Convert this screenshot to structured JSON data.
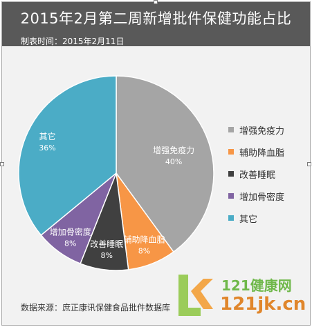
{
  "header": {
    "title": "2015年2月第二周新增批件保健功能占比",
    "subtitle": "制表时间：2015年2月11日"
  },
  "chart_data": {
    "type": "pie",
    "title": "2015年2月第二周新增批件保健功能占比",
    "categories": [
      "增强免疫力",
      "辅助降血脂",
      "改善睡眠",
      "增加骨密度",
      "其它"
    ],
    "values": [
      40,
      8,
      8,
      8,
      36
    ],
    "value_labels": [
      "40%",
      "8%",
      "8%",
      "8%",
      "36%"
    ],
    "colors": [
      "#a5a5a5",
      "#f79646",
      "#404040",
      "#8064a2",
      "#4bacc6"
    ],
    "legend_placement": "right"
  },
  "footer": {
    "source": "数据来源：庶正康讯保健食品批件数据库"
  },
  "watermark": {
    "line1": "121健康网",
    "line2": "121jk.cn"
  }
}
